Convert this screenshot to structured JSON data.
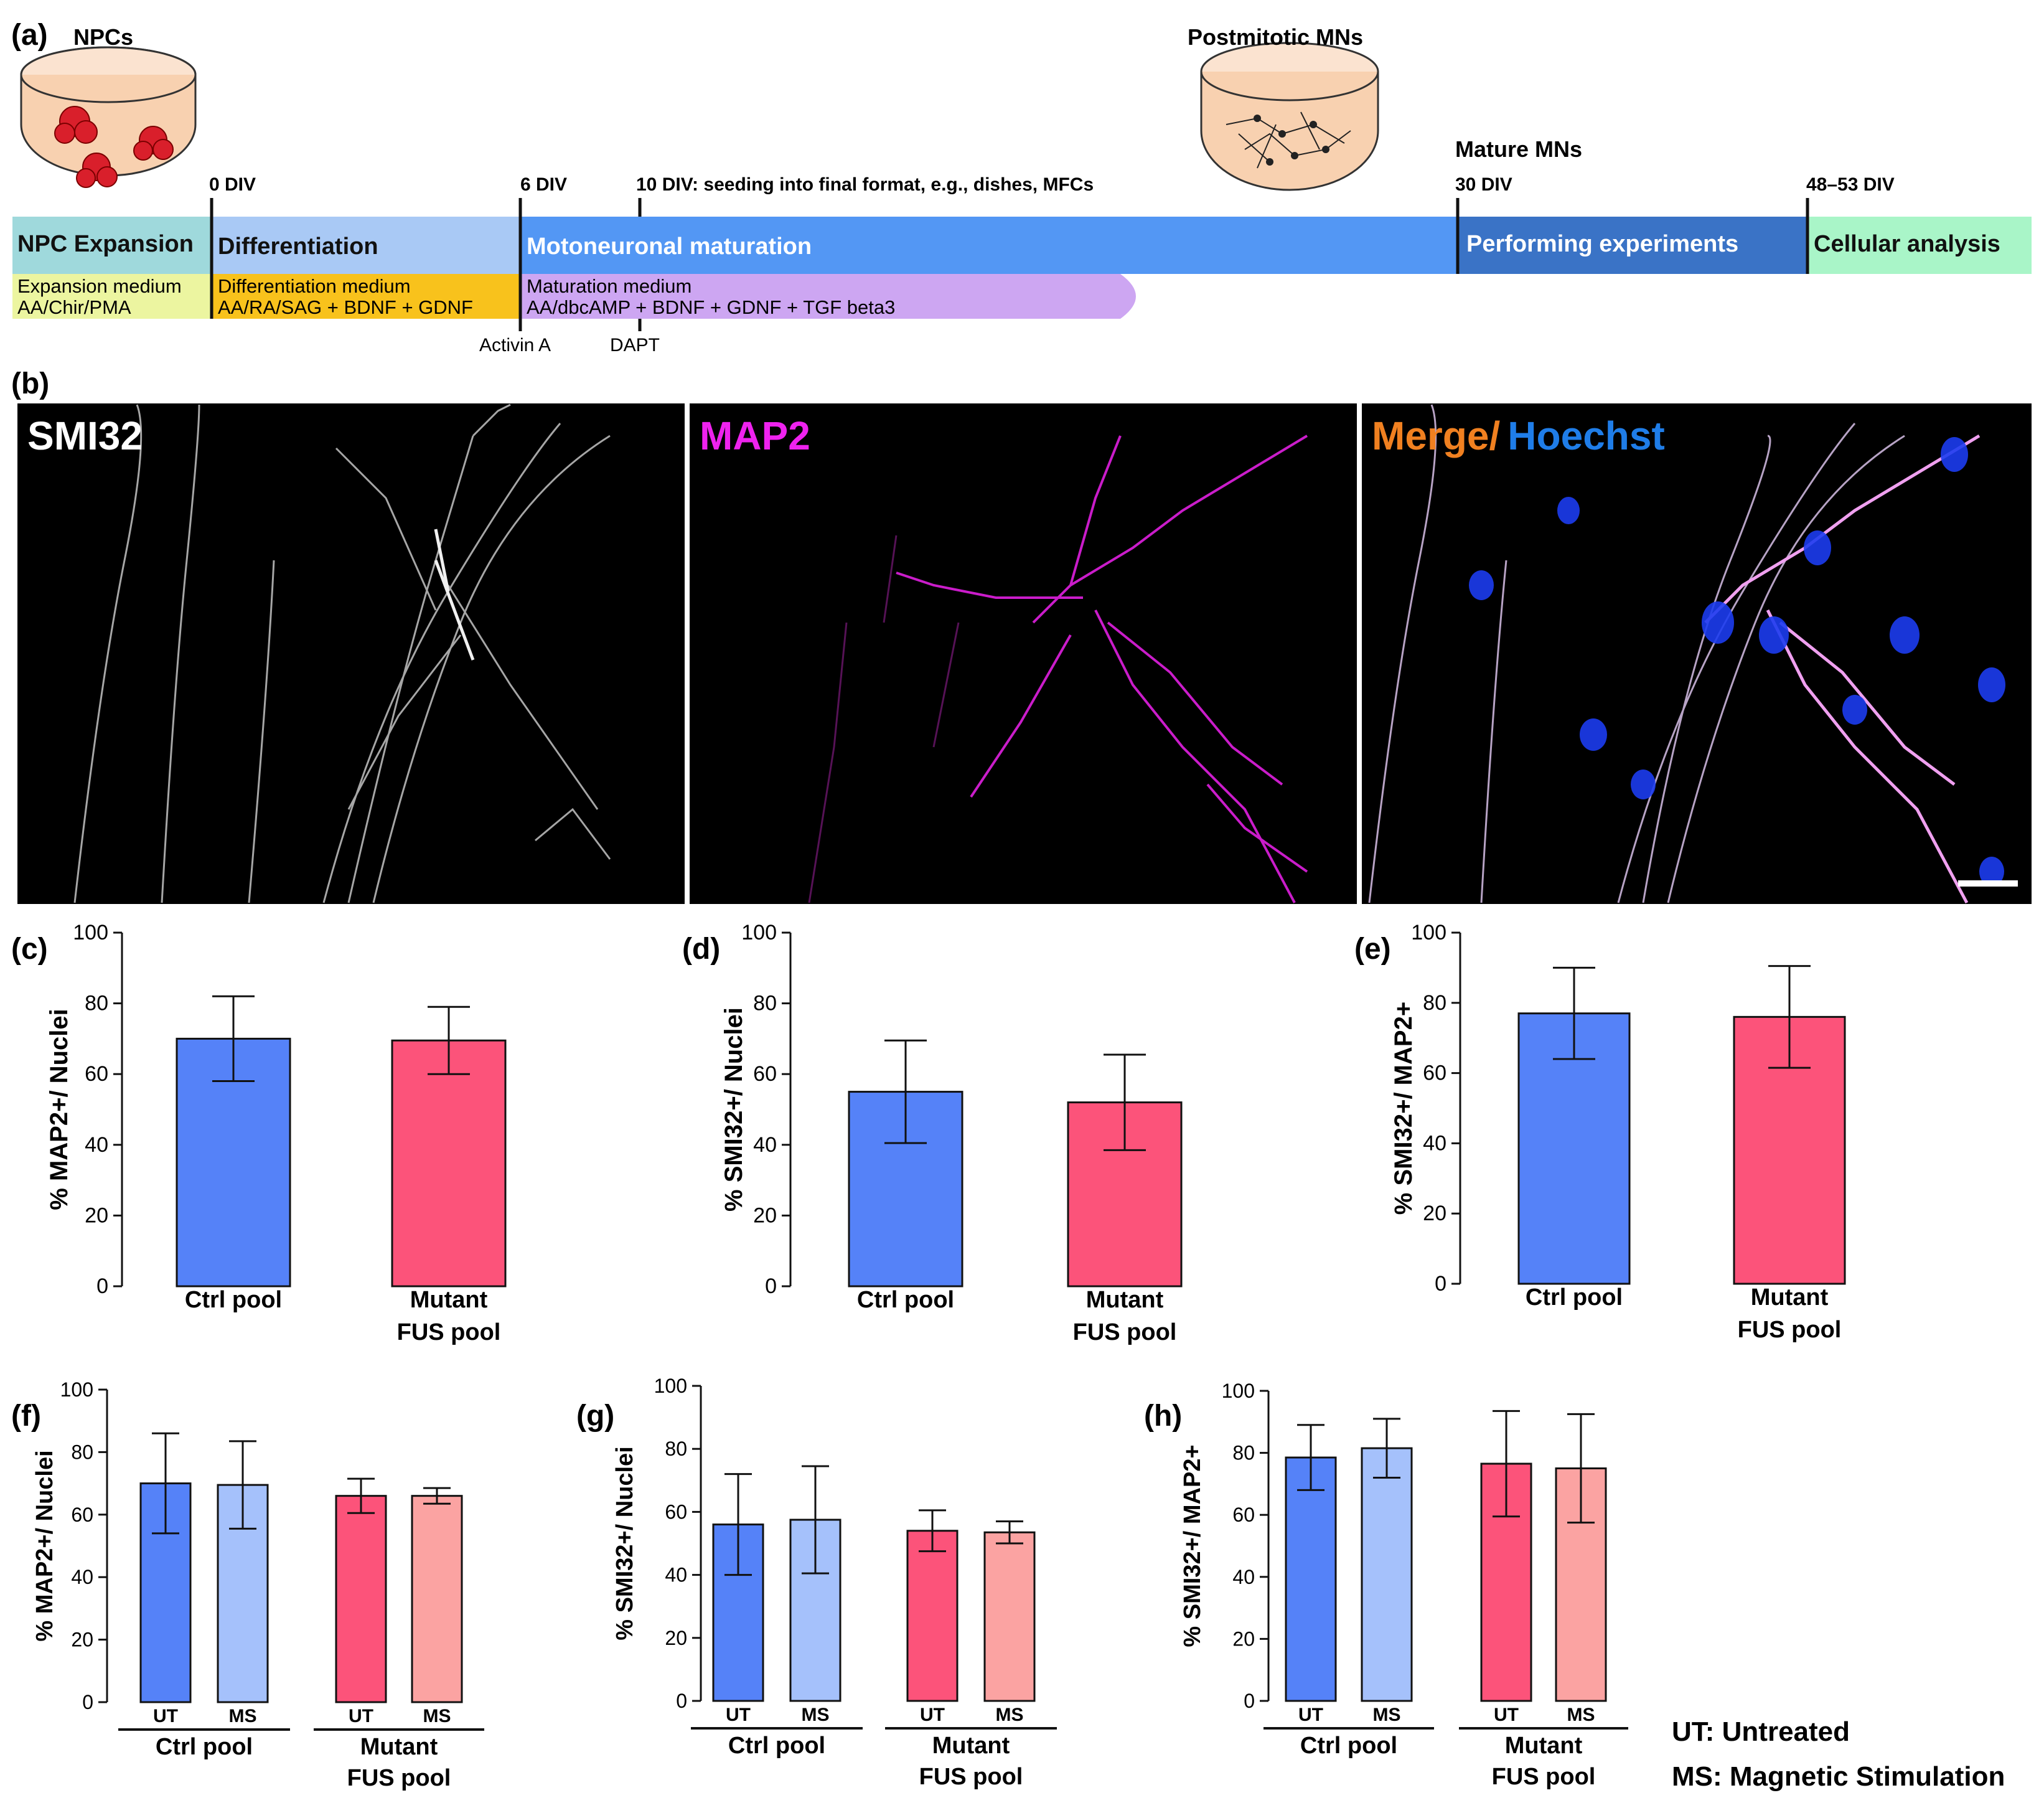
{
  "panel_letters": [
    "(a)",
    "(b)",
    "(c)",
    "(d)",
    "(e)",
    "(f)",
    "(g)",
    "(h)"
  ],
  "timeline": {
    "dish_labels": {
      "npcs": "NPCs",
      "postmitotic": "Postmitotic MNs"
    },
    "mature_label": "Mature MNs",
    "ticks": [
      "0 DIV",
      "6 DIV",
      "10 DIV: seeding into final format, e.g., dishes, MFCs",
      "30 DIV",
      "48–53 DIV"
    ],
    "phases": [
      "NPC Expansion",
      "Differentiation",
      "Motoneuronal maturation",
      "Performing experiments",
      "Cellular analysis"
    ],
    "media": [
      {
        "name": "Expansion medium",
        "content": "AA/Chir/PMA"
      },
      {
        "name": "Differentiation medium",
        "content": "AA/RA/SAG + BDNF + GDNF"
      },
      {
        "name": "Maturation medium",
        "content": "AA/dbcAMP + BDNF + GDNF + TGF beta3"
      }
    ],
    "additions": [
      "Activin A",
      "DAPT"
    ],
    "colors": {
      "npc": "#9fd9dc",
      "diff": "#a9c9f5",
      "motor": "#5397f4",
      "exp": "#3a73c6",
      "cell": "#a9f5c8",
      "exp_medium": "#ecf5a0",
      "diff_medium": "#f8c21c",
      "mat_medium": "#cda6f2",
      "dish": "#f8d1b0"
    }
  },
  "micrographs": {
    "smi32": "SMI32",
    "map2": "MAP2",
    "merge": "Merge/",
    "hoechst": "Hoechst"
  },
  "chart_data": [
    {
      "panel": "(c)",
      "type": "bar",
      "ylabel": "% MAP2+/ Nuclei",
      "ylim": [
        0,
        100
      ],
      "yticks": [
        0,
        20,
        40,
        60,
        80,
        100
      ],
      "categories": [
        "Ctrl pool",
        "Mutant FUS pool"
      ],
      "series": [
        {
          "values": [
            70,
            69.5
          ],
          "errors": [
            12,
            9.5
          ]
        }
      ]
    },
    {
      "panel": "(d)",
      "type": "bar",
      "ylabel": "% SMI32+/ Nuclei",
      "ylim": [
        0,
        100
      ],
      "yticks": [
        0,
        20,
        40,
        60,
        80,
        100
      ],
      "categories": [
        "Ctrl pool",
        "Mutant FUS pool"
      ],
      "series": [
        {
          "values": [
            55,
            52
          ],
          "errors": [
            14.5,
            13.5
          ]
        }
      ]
    },
    {
      "panel": "(e)",
      "type": "bar",
      "ylabel": "% SMI32+/ MAP2+",
      "ylim": [
        0,
        100
      ],
      "yticks": [
        0,
        20,
        40,
        60,
        80,
        100
      ],
      "categories": [
        "Ctrl pool",
        "Mutant FUS pool"
      ],
      "series": [
        {
          "values": [
            77,
            76
          ],
          "errors": [
            13,
            14.5
          ]
        }
      ]
    },
    {
      "panel": "(f)",
      "type": "bar",
      "ylabel": "% MAP2+/ Nuclei",
      "ylim": [
        0,
        100
      ],
      "yticks": [
        0,
        20,
        40,
        60,
        80,
        100
      ],
      "groups": [
        "Ctrl pool",
        "Mutant FUS pool"
      ],
      "subcategories": [
        "UT",
        "MS"
      ],
      "values": [
        70,
        69.5,
        66,
        66
      ],
      "errors": [
        16,
        14,
        5.5,
        2.5
      ]
    },
    {
      "panel": "(g)",
      "type": "bar",
      "ylabel": "% SMI32+/ Nuclei",
      "ylim": [
        0,
        100
      ],
      "yticks": [
        0,
        20,
        40,
        60,
        80,
        100
      ],
      "groups": [
        "Ctrl pool",
        "Mutant FUS pool"
      ],
      "subcategories": [
        "UT",
        "MS"
      ],
      "values": [
        56,
        57.5,
        54,
        53.5
      ],
      "errors": [
        16,
        17,
        6.5,
        3.5
      ]
    },
    {
      "panel": "(h)",
      "type": "bar",
      "ylabel": "% SMI32+/ MAP2+",
      "ylim": [
        0,
        100
      ],
      "yticks": [
        0,
        20,
        40,
        60,
        80,
        100
      ],
      "groups": [
        "Ctrl pool",
        "Mutant FUS pool"
      ],
      "subcategories": [
        "UT",
        "MS"
      ],
      "values": [
        78.5,
        81.5,
        76.5,
        75
      ],
      "errors": [
        10.5,
        9.5,
        17,
        17.5
      ]
    }
  ],
  "bar_colors": {
    "ctrl": "#5582f8",
    "ctrl_light": "#a5c1fb",
    "mutant": "#fc537a",
    "mutant_light": "#fba3a2"
  },
  "legend": {
    "ut": "UT: Untreated",
    "ms": "MS: Magnetic Stimulation"
  }
}
